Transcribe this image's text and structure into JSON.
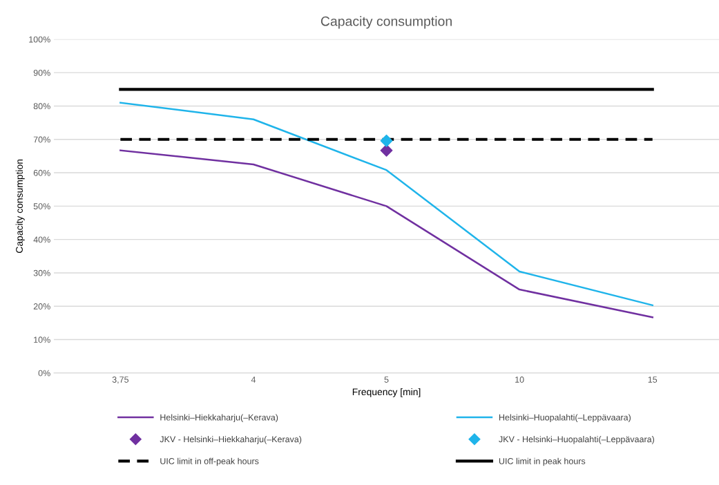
{
  "chart_data": {
    "type": "line",
    "title": "Capacity consumption",
    "xlabel": "Frequency [min]",
    "ylabel": "Capacity consumption",
    "categories": [
      "3,75",
      "4",
      "5",
      "10",
      "15"
    ],
    "series": [
      {
        "name": "Helsinki–Hiekkaharju(–Kerava)",
        "color": "#7030a0",
        "values": [
          66.7,
          62.5,
          50,
          25,
          16.7
        ]
      },
      {
        "name": "Helsinki–Huopalahti(–Leppävaara)",
        "color": "#1fb4ea",
        "values": [
          81,
          76,
          60.8,
          30.4,
          20.3
        ]
      },
      {
        "name": "JKV - Helsinki–Hiekkaharju(–Kerava)",
        "type": "scatter",
        "marker": "diamond",
        "color": "#7030a0",
        "values": [
          null,
          null,
          66.7,
          null,
          null
        ]
      },
      {
        "name": "JKV - Helsinki–Huopalahti(–Leppävaara)",
        "type": "scatter",
        "marker": "diamond",
        "color": "#1fb4ea",
        "values": [
          null,
          null,
          69.6,
          null,
          null
        ]
      },
      {
        "name": "UIC limit in off-peak hours",
        "color": "#000000",
        "line_style": "dashed",
        "values": [
          70,
          70,
          70,
          70,
          70
        ]
      },
      {
        "name": "UIC limit in peak hours",
        "color": "#000000",
        "values": [
          85,
          85,
          85,
          85,
          85
        ]
      }
    ],
    "ylim": [
      0,
      100
    ],
    "yticks": [
      {
        "value": 0,
        "label": "0%"
      },
      {
        "value": 10,
        "label": "10%"
      },
      {
        "value": 20,
        "label": "20%"
      },
      {
        "value": 30,
        "label": "30%"
      },
      {
        "value": 40,
        "label": "40%"
      },
      {
        "value": 50,
        "label": "50%"
      },
      {
        "value": 60,
        "label": "60%"
      },
      {
        "value": 70,
        "label": "70%"
      },
      {
        "value": 80,
        "label": "80%"
      },
      {
        "value": 90,
        "label": "90%"
      },
      {
        "value": 100,
        "label": "100%"
      }
    ],
    "grid": "y",
    "legend": "bottom"
  }
}
